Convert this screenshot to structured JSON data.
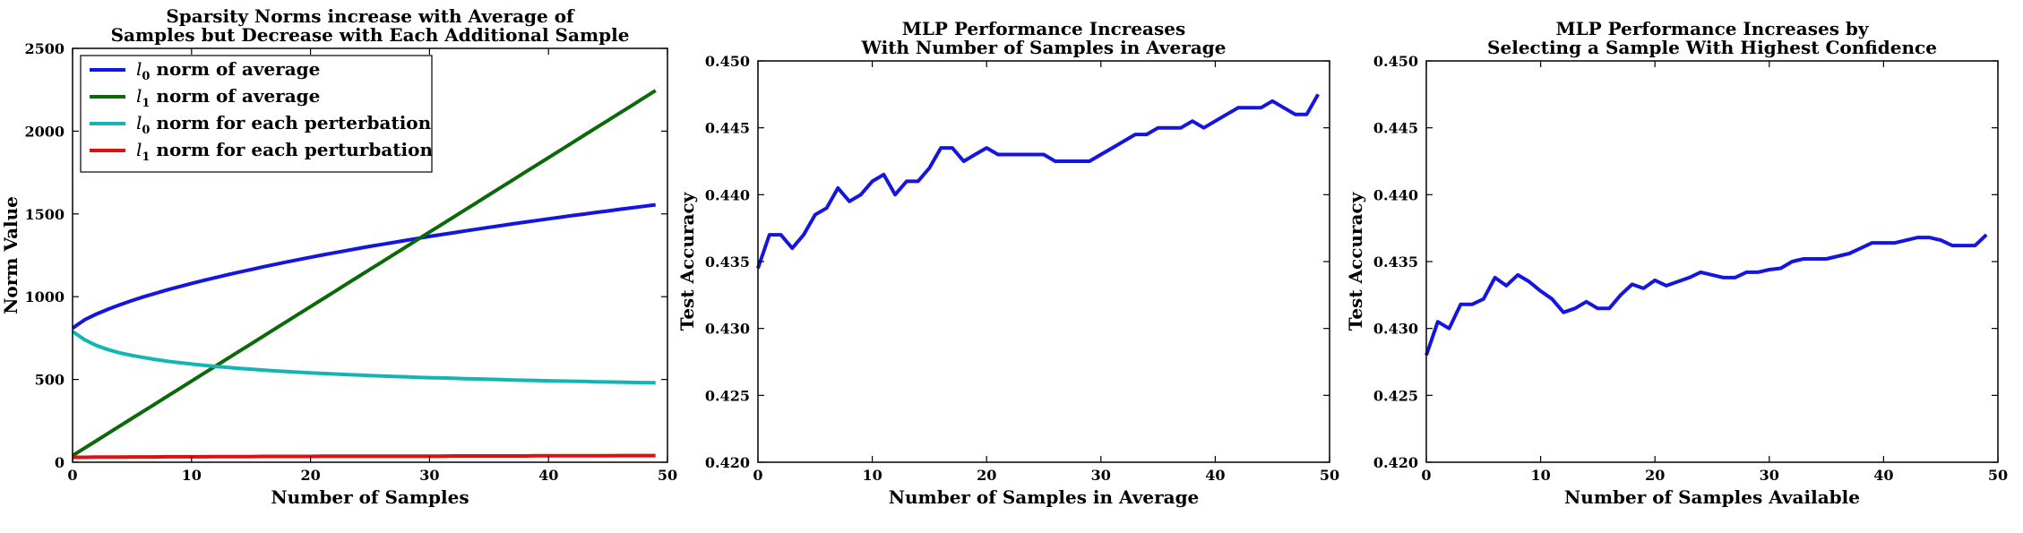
{
  "chart_data": [
    {
      "type": "line",
      "title": [
        "Sparsity Norms increase with Average of",
        "Samples but Decrease with Each Additional Sample"
      ],
      "xlabel": "Number of Samples",
      "ylabel": "Norm Value",
      "xlim": [
        0,
        50
      ],
      "ylim": [
        0,
        2500
      ],
      "xticks": [
        0,
        10,
        20,
        30,
        40,
        50
      ],
      "yticks": [
        0,
        500,
        1000,
        1500,
        2000,
        2500
      ],
      "legend_position": "upper-left",
      "x": [
        0,
        1,
        2,
        3,
        4,
        5,
        6,
        7,
        8,
        9,
        10,
        11,
        12,
        13,
        14,
        15,
        16,
        17,
        18,
        19,
        20,
        21,
        22,
        23,
        24,
        25,
        26,
        27,
        28,
        29,
        30,
        31,
        32,
        33,
        34,
        35,
        36,
        37,
        38,
        39,
        40,
        41,
        42,
        43,
        44,
        45,
        46,
        47,
        48,
        49
      ],
      "series": [
        {
          "name": "norm of average",
          "symbol": "l",
          "subscript": "0",
          "color": "#1515e0",
          "values": [
            810,
            860,
            895,
            925,
            952,
            977,
            1000,
            1021,
            1042,
            1061,
            1080,
            1098,
            1115,
            1132,
            1148,
            1164,
            1180,
            1195,
            1210,
            1224,
            1238,
            1252,
            1265,
            1278,
            1291,
            1304,
            1316,
            1328,
            1340,
            1352,
            1364,
            1375,
            1386,
            1397,
            1408,
            1419,
            1429,
            1440,
            1450,
            1460,
            1470,
            1480,
            1490,
            1499,
            1509,
            1518,
            1528,
            1537,
            1546,
            1555
          ]
        },
        {
          "name": "norm of average",
          "symbol": "l",
          "subscript": "1",
          "color": "#0a6a0a",
          "values": [
            40,
            85,
            130,
            175,
            220,
            265,
            310,
            355,
            400,
            445,
            490,
            535,
            580,
            625,
            670,
            715,
            760,
            805,
            850,
            895,
            940,
            985,
            1030,
            1075,
            1120,
            1165,
            1210,
            1255,
            1300,
            1345,
            1390,
            1435,
            1480,
            1525,
            1570,
            1615,
            1660,
            1705,
            1750,
            1795,
            1840,
            1885,
            1930,
            1975,
            2020,
            2065,
            2110,
            2155,
            2200,
            2245
          ]
        },
        {
          "name": "norm for each perterbation",
          "symbol": "l",
          "subscript": "0",
          "color": "#12b4b4",
          "values": [
            790,
            740,
            705,
            680,
            660,
            645,
            632,
            620,
            610,
            601,
            593,
            586,
            579,
            573,
            567,
            562,
            557,
            552,
            548,
            544,
            540,
            536,
            533,
            530,
            527,
            524,
            521,
            518,
            516,
            513,
            511,
            509,
            507,
            505,
            503,
            501,
            499,
            497,
            495,
            494,
            492,
            490,
            489,
            488,
            486,
            485,
            484,
            482,
            481,
            480
          ]
        },
        {
          "name": "norm for each perturbation",
          "symbol": "l",
          "subscript": "1",
          "color": "#e01010",
          "values": [
            30,
            30,
            31,
            31,
            31,
            32,
            32,
            32,
            33,
            33,
            33,
            33,
            34,
            34,
            34,
            34,
            35,
            35,
            35,
            35,
            35,
            36,
            36,
            36,
            36,
            36,
            37,
            37,
            37,
            37,
            37,
            37,
            38,
            38,
            38,
            38,
            38,
            38,
            38,
            39,
            39,
            39,
            39,
            39,
            39,
            39,
            40,
            40,
            40,
            40
          ]
        }
      ]
    },
    {
      "type": "line",
      "title": [
        "MLP Performance Increases",
        "With Number of Samples in Average"
      ],
      "xlabel": "Number of Samples in Average",
      "ylabel": "Test Accuracy",
      "xlim": [
        0,
        50
      ],
      "ylim": [
        0.42,
        0.45
      ],
      "xticks": [
        0,
        10,
        20,
        30,
        40,
        50
      ],
      "yticks": [
        "0.420",
        "0.425",
        "0.430",
        "0.435",
        "0.440",
        "0.445",
        "0.450"
      ],
      "x": [
        0,
        1,
        2,
        3,
        4,
        5,
        6,
        7,
        8,
        9,
        10,
        11,
        12,
        13,
        14,
        15,
        16,
        17,
        18,
        19,
        20,
        21,
        22,
        23,
        24,
        25,
        26,
        27,
        28,
        29,
        30,
        31,
        32,
        33,
        34,
        35,
        36,
        37,
        38,
        39,
        40,
        41,
        42,
        43,
        44,
        45,
        46,
        47,
        48,
        49
      ],
      "series": [
        {
          "color": "#1515e0",
          "values": [
            0.4345,
            0.437,
            0.437,
            0.436,
            0.437,
            0.4385,
            0.439,
            0.4405,
            0.4395,
            0.44,
            0.441,
            0.4415,
            0.44,
            0.441,
            0.441,
            0.442,
            0.4435,
            0.4435,
            0.4425,
            0.443,
            0.4435,
            0.443,
            0.443,
            0.443,
            0.443,
            0.443,
            0.4425,
            0.4425,
            0.4425,
            0.4425,
            0.443,
            0.4435,
            0.444,
            0.4445,
            0.4445,
            0.445,
            0.445,
            0.445,
            0.4455,
            0.445,
            0.4455,
            0.446,
            0.4465,
            0.4465,
            0.4465,
            0.447,
            0.4465,
            0.446,
            0.446,
            0.4475
          ]
        }
      ]
    },
    {
      "type": "line",
      "title": [
        "MLP Performance Increases by",
        "Selecting a Sample With Highest Confidence"
      ],
      "xlabel": "Number of Samples Available",
      "ylabel": "Test Accuracy",
      "xlim": [
        0,
        50
      ],
      "ylim": [
        0.42,
        0.45
      ],
      "xticks": [
        0,
        10,
        20,
        30,
        40,
        50
      ],
      "yticks": [
        "0.420",
        "0.425",
        "0.430",
        "0.435",
        "0.440",
        "0.445",
        "0.450"
      ],
      "x": [
        0,
        1,
        2,
        3,
        4,
        5,
        6,
        7,
        8,
        9,
        10,
        11,
        12,
        13,
        14,
        15,
        16,
        17,
        18,
        19,
        20,
        21,
        22,
        23,
        24,
        25,
        26,
        27,
        28,
        29,
        30,
        31,
        32,
        33,
        34,
        35,
        36,
        37,
        38,
        39,
        40,
        41,
        42,
        43,
        44,
        45,
        46,
        47,
        48,
        49
      ],
      "series": [
        {
          "color": "#1515e0",
          "values": [
            0.428,
            0.4305,
            0.43,
            0.4318,
            0.4318,
            0.4322,
            0.4338,
            0.4332,
            0.434,
            0.4335,
            0.4328,
            0.4322,
            0.4312,
            0.4315,
            0.432,
            0.4315,
            0.4315,
            0.4325,
            0.4333,
            0.433,
            0.4336,
            0.4332,
            0.4335,
            0.4338,
            0.4342,
            0.434,
            0.4338,
            0.4338,
            0.4342,
            0.4342,
            0.4344,
            0.4345,
            0.435,
            0.4352,
            0.4352,
            0.4352,
            0.4354,
            0.4356,
            0.436,
            0.4364,
            0.4364,
            0.4364,
            0.4366,
            0.4368,
            0.4368,
            0.4366,
            0.4362,
            0.4362,
            0.4362,
            0.437
          ]
        }
      ]
    }
  ]
}
